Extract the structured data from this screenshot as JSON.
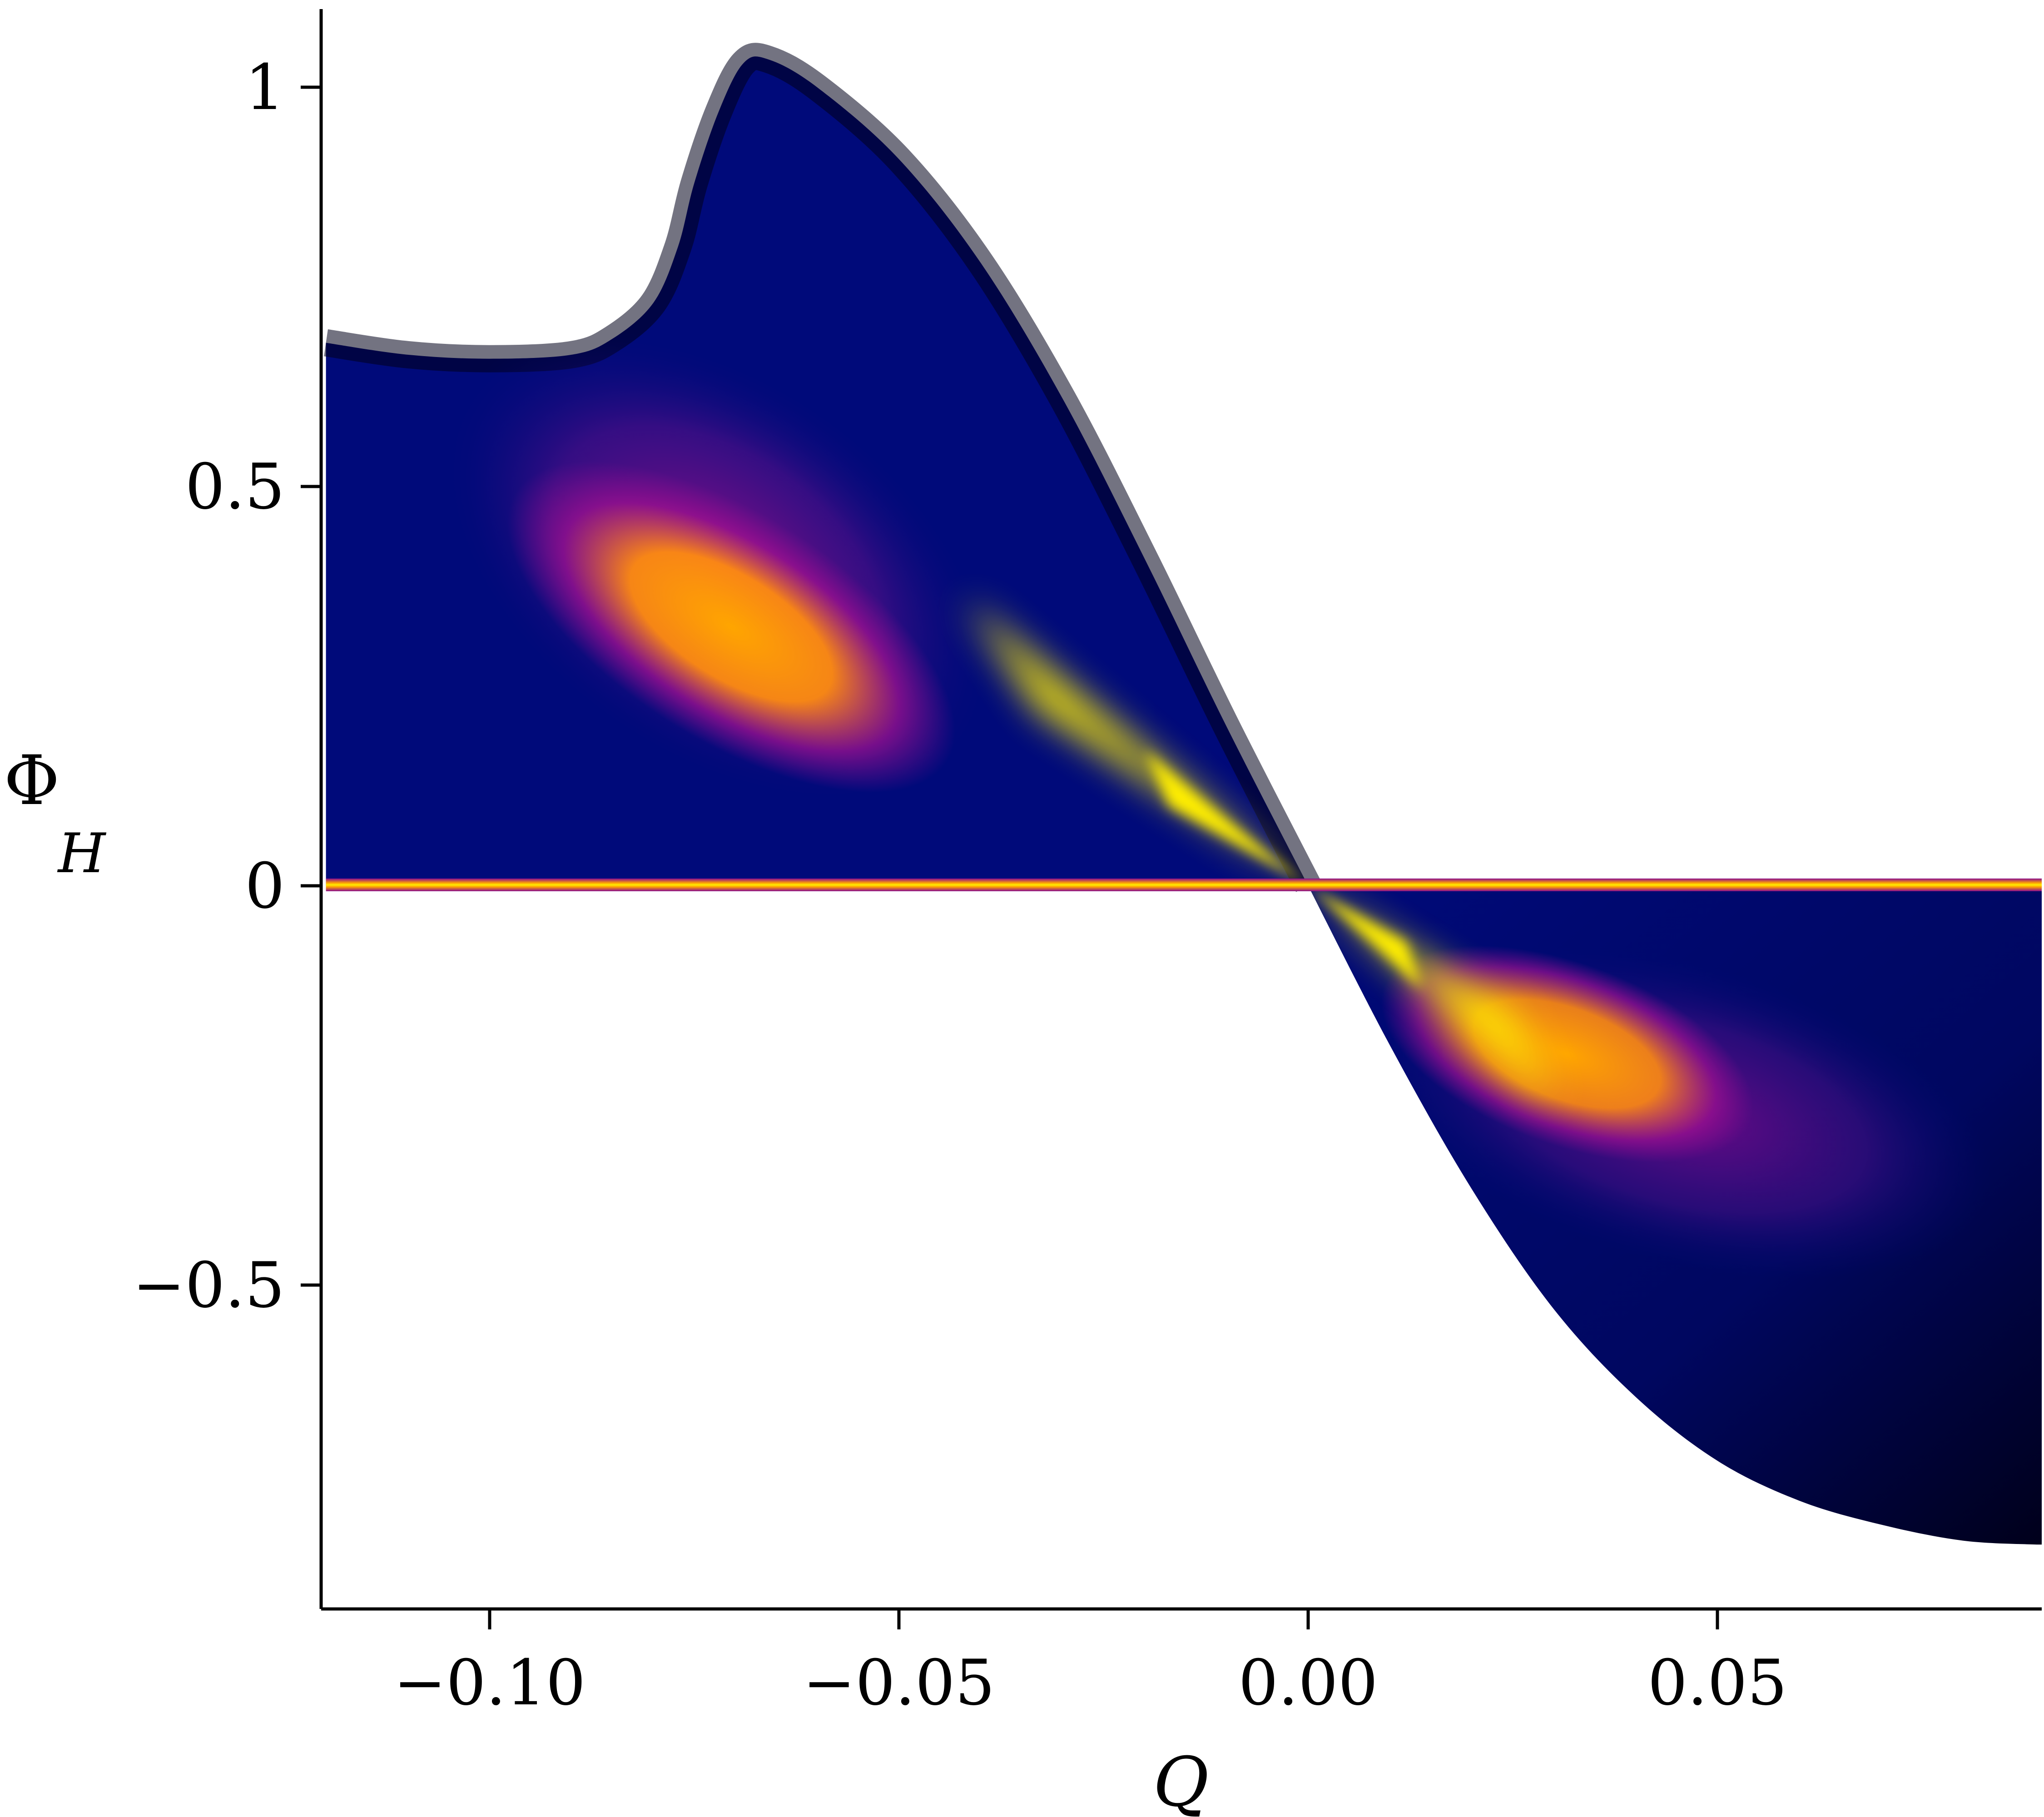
{
  "chart_data": {
    "type": "heatmap",
    "title": "",
    "xlabel": "Q",
    "ylabel": "Φ",
    "ylabel_subscript": "H",
    "xlim": [
      -0.12,
      0.089
    ],
    "ylim": [
      -0.91,
      1.1
    ],
    "x_ticks": [
      -0.1,
      -0.05,
      0.0,
      0.05
    ],
    "x_tick_labels": [
      "−0.10",
      "−0.05",
      "0.00",
      "0.05"
    ],
    "y_ticks": [
      -0.5,
      0,
      0.5,
      1
    ],
    "y_tick_labels": [
      "−0.5",
      "0",
      "0.5",
      "1"
    ],
    "grid": false,
    "legend": "none",
    "colormap": "plasma-like (navy → purple → orange → yellow)",
    "colors": {
      "background_region": "#000a7a",
      "edge_dark": "#00001a",
      "mid": "#8a0a90",
      "high": "#ff9a00",
      "peak": "#ffee00"
    },
    "upper_boundary": {
      "x": [
        -0.12,
        -0.11,
        -0.1,
        -0.09,
        -0.085,
        -0.08,
        -0.077,
        -0.075,
        -0.072,
        -0.069,
        -0.066,
        -0.06,
        -0.05,
        -0.04,
        -0.03,
        -0.02,
        -0.01,
        0.0
      ],
      "y": [
        0.68,
        0.665,
        0.66,
        0.665,
        0.685,
        0.73,
        0.8,
        0.88,
        0.97,
        1.03,
        1.035,
        1.0,
        0.91,
        0.78,
        0.61,
        0.41,
        0.2,
        0.0
      ]
    },
    "lower_boundary": {
      "x": [
        0.0,
        0.01,
        0.02,
        0.03,
        0.04,
        0.05,
        0.06,
        0.07,
        0.08,
        0.089
      ],
      "y": [
        0.0,
        -0.2,
        -0.38,
        -0.53,
        -0.64,
        -0.72,
        -0.77,
        -0.8,
        -0.82,
        -0.825
      ]
    },
    "zero_line_band": {
      "y": 0.0,
      "x_range": [
        -0.12,
        0.089
      ]
    },
    "hot_spots": [
      {
        "x": -0.04,
        "y": 0.3,
        "intensity": "peak"
      },
      {
        "x": 0.03,
        "y": -0.22,
        "intensity": "peak"
      }
    ]
  }
}
